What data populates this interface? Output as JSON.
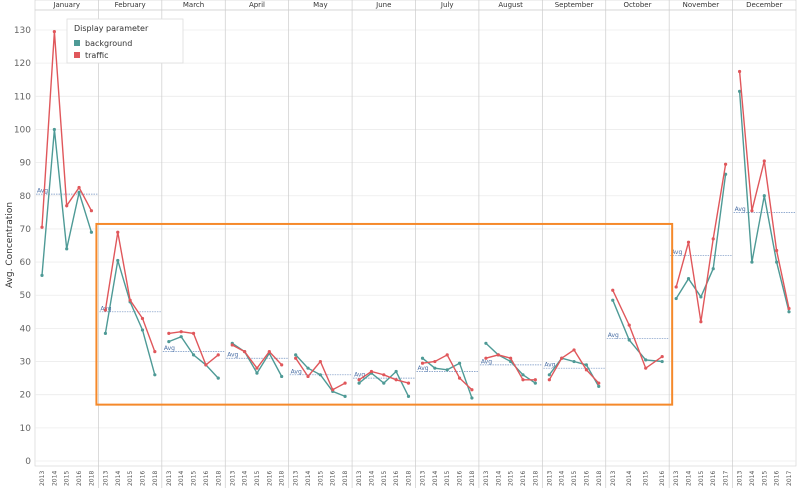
{
  "chart_data": {
    "type": "line",
    "ylabel": "Avg. Concentration",
    "ylim": [
      0,
      130
    ],
    "yticks": [
      0,
      10,
      20,
      30,
      40,
      50,
      60,
      70,
      80,
      90,
      100,
      110,
      120,
      130
    ],
    "grid": true,
    "legend": {
      "title": "Display parameter",
      "placement": "top-left"
    },
    "avg_label": "Avg",
    "highlight_box": {
      "color": "#f5892a",
      "months": [
        "February",
        "October"
      ],
      "y_range": [
        17,
        71.5
      ]
    },
    "series_colors": {
      "background": "#4e9a96",
      "traffic": "#e0575b"
    },
    "panels": [
      {
        "month": "January",
        "years": [
          "2013",
          "2014",
          "2015",
          "2016",
          "2018"
        ],
        "background": [
          56,
          100,
          64,
          81,
          69
        ],
        "traffic": [
          70.5,
          129.5,
          77,
          82.5,
          75.5
        ],
        "avg": 80.5
      },
      {
        "month": "February",
        "years": [
          "2013",
          "2014",
          "2015",
          "2016",
          "2018"
        ],
        "background": [
          38.5,
          60.5,
          48,
          39.5,
          26
        ],
        "traffic": [
          45.5,
          69,
          48.5,
          43,
          33
        ],
        "avg": 45
      },
      {
        "month": "March",
        "years": [
          "2013",
          "2014",
          "2015",
          "2016",
          "2018"
        ],
        "background": [
          36,
          37.5,
          32,
          29,
          25
        ],
        "traffic": [
          38.5,
          39,
          38.5,
          29,
          32
        ],
        "avg": 33
      },
      {
        "month": "April",
        "years": [
          "2013",
          "2014",
          "2015",
          "2016",
          "2018"
        ],
        "background": [
          35.5,
          33,
          26.5,
          32.5,
          25.5
        ],
        "traffic": [
          35,
          33,
          28,
          33,
          29
        ],
        "avg": 31
      },
      {
        "month": "May",
        "years": [
          "2013",
          "2014",
          "2015",
          "2016",
          "2018"
        ],
        "background": [
          32,
          28,
          26,
          21,
          19.5
        ],
        "traffic": [
          31,
          25.5,
          30,
          21.5,
          23.5
        ],
        "avg": 26
      },
      {
        "month": "June",
        "years": [
          "2013",
          "2014",
          "2015",
          "2016",
          "2018"
        ],
        "background": [
          23.5,
          26.5,
          23.5,
          27,
          19.5
        ],
        "traffic": [
          24.5,
          27,
          26,
          24.5,
          23.5
        ],
        "avg": 25
      },
      {
        "month": "July",
        "years": [
          "2013",
          "2014",
          "2015",
          "2016",
          "2018"
        ],
        "background": [
          31,
          28,
          27.5,
          29.5,
          19
        ],
        "traffic": [
          29.5,
          30,
          32,
          25,
          21.5
        ],
        "avg": 27
      },
      {
        "month": "August",
        "years": [
          "2013",
          "2014",
          "2015",
          "2016",
          "2018"
        ],
        "background": [
          35.5,
          32,
          30,
          26,
          23.5
        ],
        "traffic": [
          31,
          32,
          31,
          24.5,
          24.5
        ],
        "avg": 29
      },
      {
        "month": "September",
        "years": [
          "2013",
          "2014",
          "2015",
          "2016",
          "2018"
        ],
        "background": [
          26,
          31,
          30,
          29,
          22.5
        ],
        "traffic": [
          24.5,
          31,
          33.5,
          27.5,
          23.5
        ],
        "avg": 28
      },
      {
        "month": "October",
        "years": [
          "2013",
          "2014",
          "2015",
          "2016"
        ],
        "background": [
          48.5,
          36.5,
          30.5,
          30
        ],
        "traffic": [
          51.5,
          41,
          28,
          31.5
        ],
        "avg": 37
      },
      {
        "month": "November",
        "years": [
          "2013",
          "2014",
          "2015",
          "2016",
          "2017"
        ],
        "background": [
          49,
          55,
          49.5,
          58,
          86.5
        ],
        "traffic": [
          52.5,
          66,
          42,
          67,
          89.5
        ],
        "avg": 62
      },
      {
        "month": "December",
        "years": [
          "2013",
          "2014",
          "2015",
          "2016",
          "2017"
        ],
        "background": [
          111.5,
          60,
          80,
          60,
          45
        ],
        "traffic": [
          117.5,
          75.5,
          90.5,
          63.5,
          46
        ],
        "avg": 75
      }
    ]
  }
}
